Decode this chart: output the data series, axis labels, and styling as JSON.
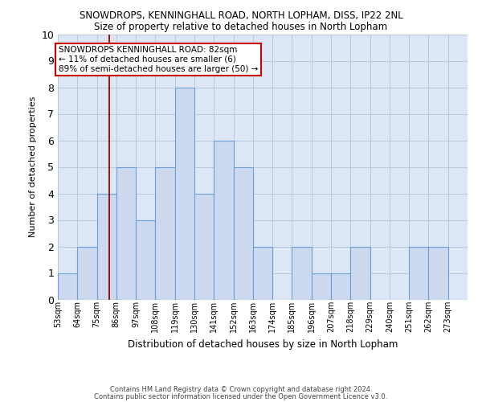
{
  "title": "SNOWDROPS, KENNINGHALL ROAD, NORTH LOPHAM, DISS, IP22 2NL",
  "subtitle": "Size of property relative to detached houses in North Lopham",
  "xlabel": "Distribution of detached houses by size in North Lopham",
  "ylabel": "Number of detached properties",
  "footer_line1": "Contains HM Land Registry data © Crown copyright and database right 2024.",
  "footer_line2": "Contains public sector information licensed under the Open Government Licence v3.0.",
  "bin_labels": [
    "53sqm",
    "64sqm",
    "75sqm",
    "86sqm",
    "97sqm",
    "108sqm",
    "119sqm",
    "130sqm",
    "141sqm",
    "152sqm",
    "163sqm",
    "174sqm",
    "185sqm",
    "196sqm",
    "207sqm",
    "218sqm",
    "229sqm",
    "240sqm",
    "251sqm",
    "262sqm",
    "273sqm"
  ],
  "bin_edges": [
    53,
    64,
    75,
    86,
    97,
    108,
    119,
    130,
    141,
    152,
    163,
    174,
    185,
    196,
    207,
    218,
    229,
    240,
    251,
    262,
    273,
    284
  ],
  "bar_heights": [
    1,
    2,
    4,
    5,
    3,
    5,
    8,
    4,
    6,
    5,
    2,
    0,
    2,
    1,
    1,
    2,
    0,
    0,
    2,
    2,
    0
  ],
  "bar_facecolor": "#ccd9ee",
  "bar_edgecolor": "#6a9fd8",
  "grid_color": "#b8c8dc",
  "background_color": "#dce6f5",
  "property_size": 82,
  "annotation_line_color": "#990000",
  "annotation_box_text": "SNOWDROPS KENNINGHALL ROAD: 82sqm\n← 11% of detached houses are smaller (6)\n89% of semi-detached houses are larger (50) →",
  "annotation_box_color": "#cc0000",
  "ylim": [
    0,
    10
  ],
  "yticks": [
    0,
    1,
    2,
    3,
    4,
    5,
    6,
    7,
    8,
    9,
    10
  ]
}
